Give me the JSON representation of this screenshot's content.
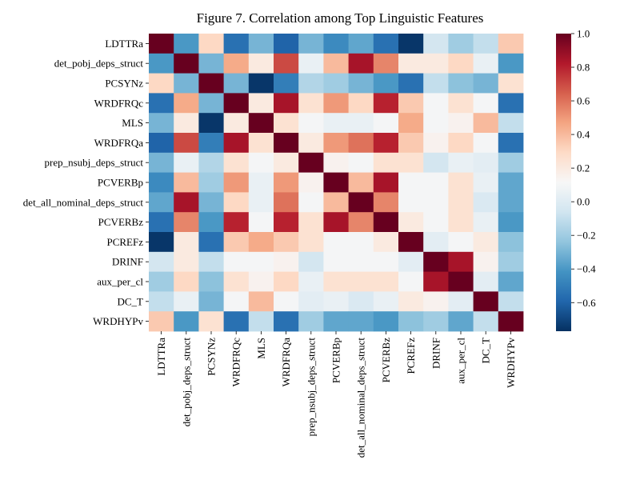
{
  "chart_data": {
    "type": "heatmap",
    "title": "Figure 7. Correlation among Top Linguistic Features",
    "row_labels": [
      "LDTTRa",
      "det_pobj_deps_struct",
      "PCSYNz",
      "WRDFRQc",
      "MLS",
      "WRDFRQa",
      "prep_nsubj_deps_struct",
      "PCVERBp",
      "det_all_nominal_deps_struct",
      "PCVERBz",
      "PCREFz",
      "DRINF",
      "aux_per_cl",
      "DC_T",
      "WRDHYPv"
    ],
    "col_labels": [
      "LDTTRa",
      "det_pobj_deps_struct",
      "PCSYNz",
      "WRDFRQc",
      "MLS",
      "WRDFRQa",
      "prep_nsubj_deps_struct",
      "PCVERBp",
      "det_all_nominal_deps_struct",
      "PCVERBz",
      "PCREFz",
      "DRINF",
      "aux_per_cl",
      "DC_T",
      "WRDHYPv"
    ],
    "values": [
      [
        1.0,
        -0.4,
        0.3,
        -0.55,
        -0.3,
        -0.6,
        -0.3,
        -0.45,
        -0.35,
        -0.55,
        -0.75,
        -0.05,
        -0.2,
        -0.1,
        0.35
      ],
      [
        -0.4,
        1.0,
        -0.3,
        0.45,
        0.2,
        0.7,
        0.05,
        0.4,
        0.85,
        0.55,
        0.2,
        0.2,
        0.3,
        0.05,
        -0.4
      ],
      [
        0.3,
        -0.3,
        1.0,
        -0.3,
        -0.75,
        -0.5,
        -0.15,
        -0.2,
        -0.3,
        -0.4,
        -0.55,
        -0.1,
        -0.25,
        -0.3,
        0.25
      ],
      [
        -0.55,
        0.45,
        -0.3,
        1.0,
        0.2,
        0.85,
        0.25,
        0.5,
        0.3,
        0.8,
        0.35,
        0.1,
        0.25,
        0.1,
        -0.55
      ],
      [
        -0.3,
        0.2,
        -0.75,
        0.2,
        1.0,
        0.25,
        0.1,
        0.05,
        0.05,
        0.1,
        0.45,
        0.1,
        0.15,
        0.4,
        -0.1
      ],
      [
        -0.6,
        0.7,
        -0.5,
        0.85,
        0.25,
        1.0,
        0.2,
        0.5,
        0.6,
        0.8,
        0.35,
        0.15,
        0.3,
        0.1,
        -0.55
      ],
      [
        -0.3,
        0.05,
        -0.15,
        0.25,
        0.1,
        0.2,
        1.0,
        0.15,
        0.1,
        0.25,
        0.25,
        -0.05,
        0.05,
        0.02,
        -0.2
      ],
      [
        -0.45,
        0.4,
        -0.2,
        0.5,
        0.05,
        0.5,
        0.15,
        1.0,
        0.4,
        0.85,
        0.1,
        0.1,
        0.25,
        0.05,
        -0.35
      ],
      [
        -0.35,
        0.85,
        -0.3,
        0.3,
        0.05,
        0.6,
        0.1,
        0.4,
        1.0,
        0.55,
        0.1,
        0.1,
        0.25,
        -0.02,
        -0.35
      ],
      [
        -0.55,
        0.55,
        -0.4,
        0.8,
        0.1,
        0.8,
        0.25,
        0.85,
        0.55,
        1.0,
        0.2,
        0.1,
        0.25,
        0.05,
        -0.4
      ],
      [
        -0.75,
        0.2,
        -0.55,
        0.35,
        0.45,
        0.35,
        0.25,
        0.1,
        0.1,
        0.2,
        1.0,
        0.02,
        0.1,
        0.2,
        -0.25
      ],
      [
        -0.05,
        0.2,
        -0.1,
        0.1,
        0.1,
        0.15,
        -0.05,
        0.1,
        0.1,
        0.1,
        0.02,
        1.0,
        0.85,
        0.15,
        -0.2
      ],
      [
        -0.2,
        0.3,
        -0.25,
        0.25,
        0.15,
        0.3,
        0.05,
        0.25,
        0.25,
        0.25,
        0.1,
        0.85,
        1.0,
        0.02,
        -0.35
      ],
      [
        -0.1,
        0.05,
        -0.3,
        0.1,
        0.4,
        0.1,
        0.02,
        0.05,
        -0.02,
        0.05,
        0.2,
        0.15,
        0.02,
        1.0,
        -0.1
      ],
      [
        0.35,
        -0.4,
        0.25,
        -0.55,
        -0.1,
        -0.55,
        -0.2,
        -0.35,
        -0.35,
        -0.4,
        -0.25,
        -0.2,
        -0.35,
        -0.1,
        1.0
      ]
    ],
    "colorbar": {
      "min": -0.77,
      "max": 1.0,
      "ticks": [
        1.0,
        0.8,
        0.6,
        0.4,
        0.2,
        0.0,
        -0.2,
        -0.4,
        -0.6
      ],
      "tick_labels": [
        "1.0",
        "0.8",
        "0.6",
        "0.4",
        "0.2",
        "0.0",
        "−0.2",
        "−0.4",
        "−0.6"
      ],
      "colormap": "RdBu_r",
      "stops": [
        "#053061",
        "#2166ac",
        "#4393c3",
        "#92c5de",
        "#d1e5f0",
        "#f7f7f7",
        "#fddbc7",
        "#f4a582",
        "#d6604d",
        "#b2182b",
        "#67001f"
      ]
    }
  }
}
